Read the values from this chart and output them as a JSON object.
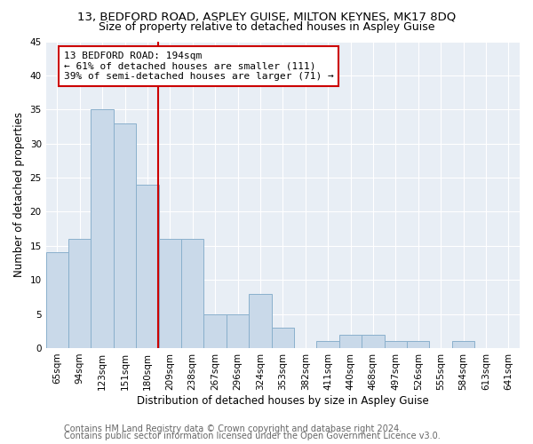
{
  "title": "13, BEDFORD ROAD, ASPLEY GUISE, MILTON KEYNES, MK17 8DQ",
  "subtitle": "Size of property relative to detached houses in Aspley Guise",
  "xlabel": "Distribution of detached houses by size in Aspley Guise",
  "ylabel": "Number of detached properties",
  "bin_labels": [
    "65sqm",
    "94sqm",
    "123sqm",
    "151sqm",
    "180sqm",
    "209sqm",
    "238sqm",
    "267sqm",
    "296sqm",
    "324sqm",
    "353sqm",
    "382sqm",
    "411sqm",
    "440sqm",
    "468sqm",
    "497sqm",
    "526sqm",
    "555sqm",
    "584sqm",
    "613sqm",
    "641sqm"
  ],
  "bar_heights": [
    14,
    16,
    35,
    33,
    24,
    16,
    16,
    5,
    5,
    8,
    3,
    0,
    1,
    2,
    2,
    1,
    1,
    0,
    1,
    0
  ],
  "bar_color": "#c9d9e9",
  "bar_edge_color": "#8ab0cc",
  "vline_color": "#cc0000",
  "annotation_text": "13 BEDFORD ROAD: 194sqm\n← 61% of detached houses are smaller (111)\n39% of semi-detached houses are larger (71) →",
  "annotation_box_color": "#ffffff",
  "annotation_border_color": "#cc0000",
  "ylim": [
    0,
    45
  ],
  "yticks": [
    0,
    5,
    10,
    15,
    20,
    25,
    30,
    35,
    40,
    45
  ],
  "footer1": "Contains HM Land Registry data © Crown copyright and database right 2024.",
  "footer2": "Contains public sector information licensed under the Open Government Licence v3.0.",
  "bg_color": "#ffffff",
  "plot_bg_color": "#e8eef5",
  "title_fontsize": 9.5,
  "subtitle_fontsize": 9,
  "axis_label_fontsize": 8.5,
  "tick_fontsize": 7.5,
  "annotation_fontsize": 8,
  "footer_fontsize": 7
}
